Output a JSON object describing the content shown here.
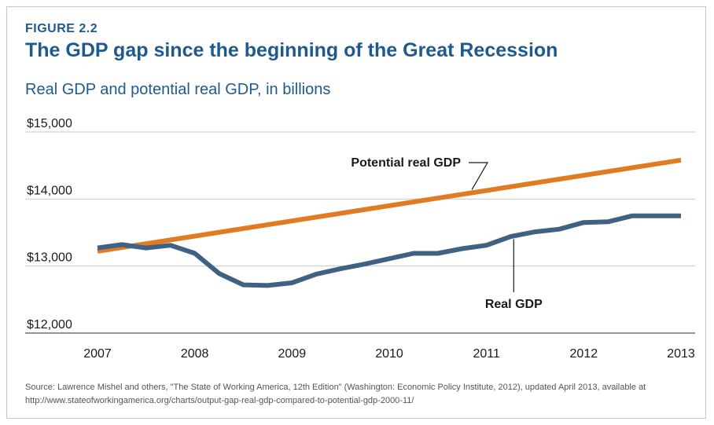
{
  "figure": {
    "label": "FIGURE 2.2",
    "title": "The GDP gap since the beginning of the Great Recession",
    "subtitle": "Real GDP and potential real GDP, in billions",
    "source": "Source: Lawrence Mishel and others, \"The State of Working America, 12th Edition\" (Washington: Economic Policy Institute, 2012), updated April 2013, available at http://www.stateofworkingamerica.org/charts/output-gap-real-gdp-compared-to-potential-gdp-2000-11/"
  },
  "chart_data": {
    "type": "line",
    "title": "The GDP gap since the beginning of the Great Recession",
    "subtitle": "Real GDP and potential real GDP, in billions",
    "xlabel": "",
    "ylabel": "",
    "xlim": [
      2007.0,
      2013.0
    ],
    "ylim": [
      12000,
      15000
    ],
    "x_ticks": [
      2007,
      2008,
      2009,
      2010,
      2011,
      2012,
      2013
    ],
    "x_tick_labels": [
      "2007",
      "2008",
      "2009",
      "2010",
      "2011",
      "2012",
      "2013"
    ],
    "y_ticks": [
      12000,
      13000,
      14000,
      15000
    ],
    "y_tick_labels": [
      "$12,000",
      "$13,000",
      "$14,000",
      "$15,000"
    ],
    "grid": "horizontal",
    "series": [
      {
        "name": "Potential real GDP",
        "color": "#e07b24",
        "x": [
          2007.0,
          2013.0
        ],
        "y": [
          13220,
          14580
        ],
        "annotation": "Potential real GDP"
      },
      {
        "name": "Real GDP",
        "color": "#3f6183",
        "x": [
          2007.0,
          2007.25,
          2007.5,
          2007.75,
          2008.0,
          2008.25,
          2008.5,
          2008.75,
          2009.0,
          2009.25,
          2009.5,
          2009.75,
          2010.0,
          2010.25,
          2010.5,
          2010.75,
          2011.0,
          2011.25,
          2011.5,
          2011.75,
          2012.0,
          2012.25,
          2012.5,
          2012.75,
          2013.0
        ],
        "y": [
          13270,
          13320,
          13270,
          13310,
          13190,
          12890,
          12720,
          12710,
          12750,
          12880,
          12960,
          13030,
          13110,
          13190,
          13190,
          13260,
          13310,
          13440,
          13510,
          13550,
          13650,
          13660,
          13750,
          13750,
          13750
        ],
        "annotation": "Real GDP"
      }
    ]
  }
}
